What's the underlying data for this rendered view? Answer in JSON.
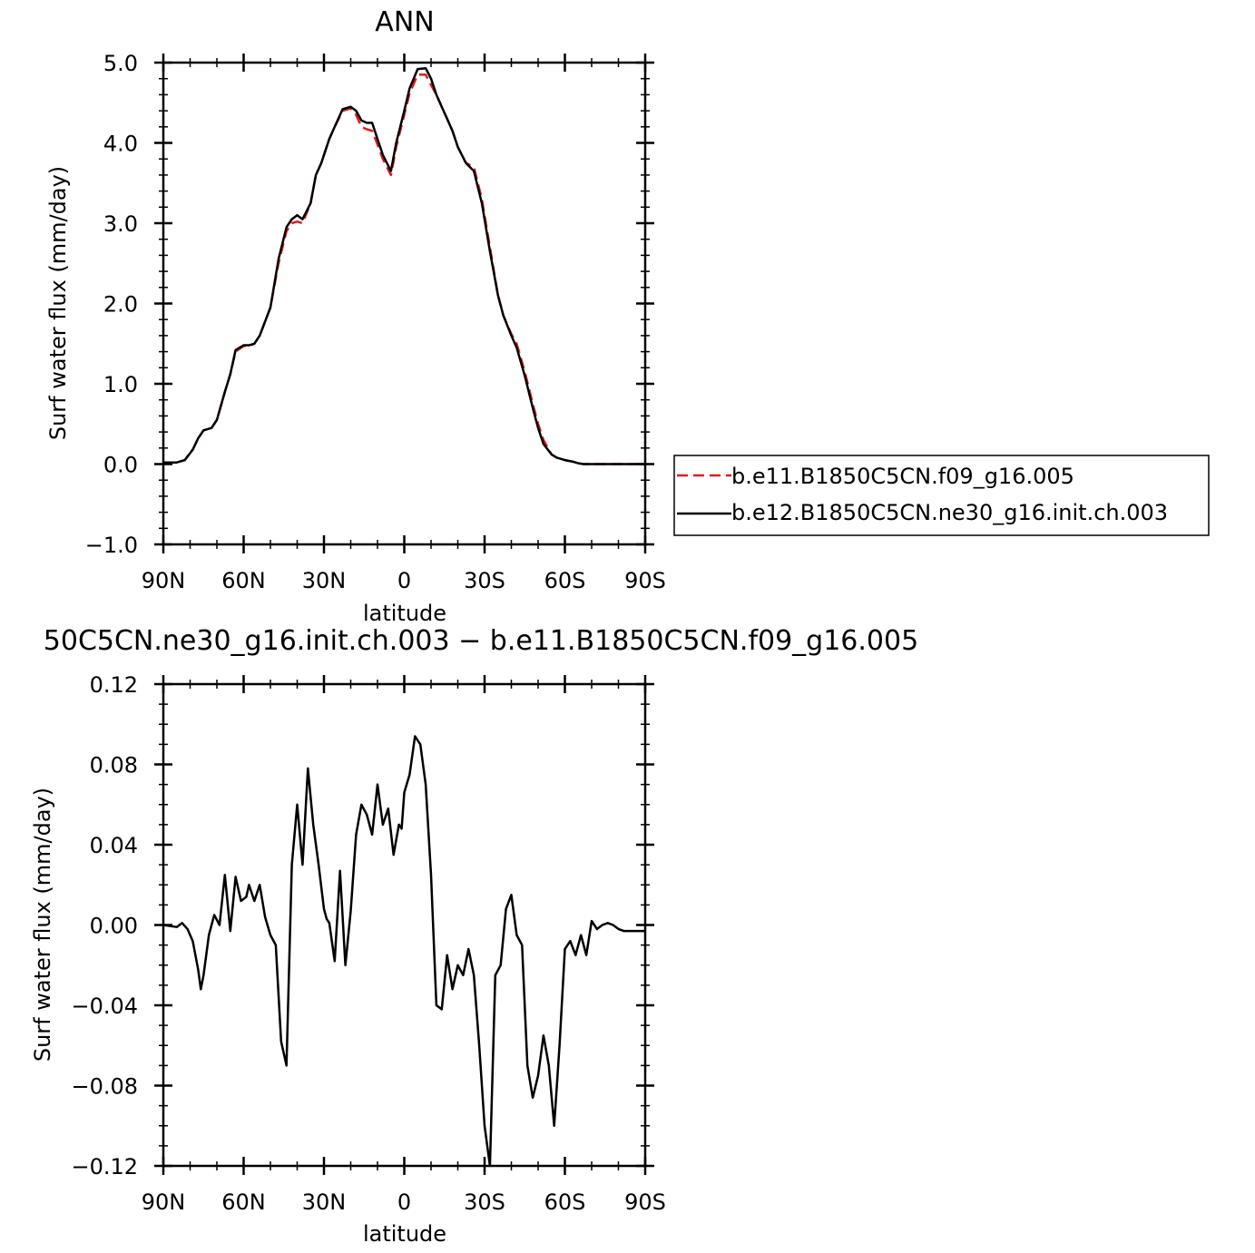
{
  "chart_data": [
    {
      "type": "line",
      "title": "ANN",
      "xlabel": "latitude",
      "ylabel": "Surf water flux (mm/day)",
      "ylim": [
        -1.0,
        5.0
      ],
      "xlim": [
        90,
        -90
      ],
      "yticks": [
        "5.0",
        "4.0",
        "3.0",
        "2.0",
        "1.0",
        "0.0",
        "−1.0"
      ],
      "ytick_values": [
        5,
        4,
        3,
        2,
        1,
        0,
        -1
      ],
      "xticks": [
        "90N",
        "60N",
        "30N",
        "0",
        "30S",
        "60S",
        "90S"
      ],
      "xtick_values": [
        90,
        60,
        30,
        0,
        -30,
        -60,
        -90
      ],
      "legend": {
        "placement": "right",
        "entries": [
          "b.e11.B1850C5CN.f09_g16.005",
          "b.e12.B1850C5CN.ne30_g16.init.ch.003"
        ]
      },
      "series": [
        {
          "name": "b.e11.B1850C5CN.f09_g16.005",
          "color": "#e31a1c",
          "dash": "dashed",
          "x": [
            90,
            85,
            82,
            79,
            77,
            75,
            72,
            70,
            67,
            65,
            63,
            60,
            58,
            56,
            54,
            50,
            47,
            44,
            42,
            40,
            38,
            35,
            33,
            31,
            30,
            28,
            26,
            23,
            20,
            18,
            16,
            14,
            12,
            10,
            8,
            5,
            3,
            0,
            -2,
            -5,
            -8,
            -10,
            -12,
            -14,
            -16,
            -18,
            -20,
            -23,
            -26,
            -29,
            -32,
            -35,
            -37,
            -40,
            -42,
            -45,
            -48,
            -50,
            -52,
            -55,
            -57,
            -60,
            -63,
            -65,
            -67,
            -70,
            -72,
            -75,
            -77,
            -79,
            -80,
            -82,
            -85,
            -88,
            -90
          ],
          "values": [
            0.02,
            0.02,
            0.05,
            0.18,
            0.32,
            0.42,
            0.45,
            0.55,
            0.9,
            1.12,
            1.4,
            1.47,
            1.47,
            1.5,
            1.6,
            1.95,
            2.5,
            2.9,
            3.0,
            3.02,
            3.0,
            3.25,
            3.6,
            3.75,
            3.85,
            4.05,
            4.2,
            4.4,
            4.43,
            4.35,
            4.2,
            4.17,
            4.15,
            3.98,
            3.8,
            3.6,
            3.95,
            4.35,
            4.62,
            4.85,
            4.85,
            4.72,
            4.6,
            4.45,
            4.3,
            4.15,
            3.95,
            3.75,
            3.7,
            3.3,
            2.7,
            2.1,
            1.85,
            1.62,
            1.5,
            1.15,
            0.75,
            0.5,
            0.3,
            0.12,
            0.08,
            0.05,
            0.03,
            0.01,
            0.0,
            0.0,
            0.0,
            0.0,
            0.0,
            0.0,
            0.0,
            0.0,
            0.0,
            0.0,
            0.0
          ]
        },
        {
          "name": "b.e12.B1850C5CN.ne30_g16.init.ch.003",
          "color": "#000000",
          "dash": "solid",
          "x": [
            90,
            85,
            82,
            79,
            77,
            75,
            72,
            70,
            67,
            65,
            63,
            60,
            58,
            56,
            54,
            50,
            47,
            44,
            42,
            40,
            38,
            35,
            33,
            31,
            30,
            28,
            26,
            23,
            20,
            18,
            16,
            14,
            12,
            10,
            8,
            5,
            3,
            0,
            -2,
            -5,
            -8,
            -10,
            -12,
            -14,
            -16,
            -18,
            -20,
            -23,
            -26,
            -29,
            -32,
            -35,
            -37,
            -40,
            -42,
            -45,
            -48,
            -50,
            -52,
            -55,
            -57,
            -60,
            -63,
            -65,
            -67,
            -70,
            -72,
            -75,
            -77,
            -79,
            -80,
            -82,
            -85,
            -88,
            -90
          ],
          "values": [
            0.02,
            0.02,
            0.05,
            0.18,
            0.32,
            0.42,
            0.45,
            0.55,
            0.9,
            1.12,
            1.42,
            1.48,
            1.48,
            1.5,
            1.6,
            1.95,
            2.55,
            2.95,
            3.05,
            3.1,
            3.05,
            3.25,
            3.6,
            3.75,
            3.85,
            4.05,
            4.2,
            4.42,
            4.45,
            4.4,
            4.28,
            4.25,
            4.25,
            4.05,
            3.85,
            3.65,
            4.0,
            4.4,
            4.68,
            4.92,
            4.93,
            4.8,
            4.6,
            4.45,
            4.3,
            4.15,
            3.95,
            3.75,
            3.65,
            3.25,
            2.65,
            2.1,
            1.85,
            1.6,
            1.45,
            1.1,
            0.7,
            0.45,
            0.25,
            0.12,
            0.08,
            0.05,
            0.03,
            0.01,
            0.0,
            0.0,
            0.0,
            0.0,
            0.0,
            0.0,
            0.0,
            0.0,
            0.0,
            0.0,
            0.0
          ]
        }
      ]
    },
    {
      "type": "line",
      "title": "50C5CN.ne30_g16.init.ch.003 − b.e11.B1850C5CN.f09_g16.005",
      "xlabel": "latitude",
      "ylabel": "Surf water flux (mm/day)",
      "ylim": [
        -0.12,
        0.12
      ],
      "xlim": [
        90,
        -90
      ],
      "yticks": [
        "0.12",
        "0.08",
        "0.04",
        "0.00",
        "−0.04",
        "−0.08",
        "−0.12"
      ],
      "ytick_values": [
        0.12,
        0.08,
        0.04,
        0.0,
        -0.04,
        -0.08,
        -0.12
      ],
      "xticks": [
        "90N",
        "60N",
        "30N",
        "0",
        "30S",
        "60S",
        "90S"
      ],
      "xtick_values": [
        90,
        60,
        30,
        0,
        -30,
        -60,
        -90
      ],
      "series": [
        {
          "color": "#000000",
          "dash": "solid",
          "x": [
            90,
            85,
            83,
            81,
            79,
            77,
            76,
            75,
            73,
            71,
            69,
            67,
            65,
            63,
            61,
            59,
            58,
            56,
            54,
            52,
            50,
            48,
            46,
            44,
            42,
            40,
            38,
            36,
            34,
            32,
            30,
            29,
            28,
            26,
            24,
            22,
            20,
            18,
            16,
            14,
            12,
            10,
            8,
            6,
            4,
            2,
            1,
            0,
            -2,
            -4,
            -6,
            -8,
            -10,
            -12,
            -14,
            -16,
            -18,
            -20,
            -22,
            -24,
            -26,
            -28,
            -30,
            -32,
            -34,
            -36,
            -38,
            -40,
            -42,
            -44,
            -46,
            -48,
            -50,
            -52,
            -54,
            -56,
            -58,
            -60,
            -62,
            -64,
            -66,
            -68,
            -70,
            -72,
            -74,
            -76,
            -78,
            -80,
            -82,
            -84,
            -86,
            -88,
            -90
          ],
          "values": [
            0.0,
            -0.001,
            0.001,
            -0.002,
            -0.008,
            -0.022,
            -0.032,
            -0.025,
            -0.005,
            0.005,
            0.0,
            0.025,
            -0.003,
            0.024,
            0.012,
            0.014,
            0.02,
            0.012,
            0.02,
            0.004,
            -0.005,
            -0.01,
            -0.058,
            -0.07,
            0.03,
            0.06,
            0.03,
            0.078,
            0.05,
            0.03,
            0.008,
            0.003,
            0.001,
            -0.018,
            0.027,
            -0.02,
            0.007,
            0.045,
            0.06,
            0.055,
            0.045,
            0.07,
            0.05,
            0.058,
            0.035,
            0.05,
            0.048,
            0.066,
            0.075,
            0.094,
            0.09,
            0.07,
            0.025,
            -0.04,
            -0.042,
            -0.015,
            -0.032,
            -0.02,
            -0.025,
            -0.012,
            -0.025,
            -0.06,
            -0.1,
            -0.12,
            -0.025,
            -0.02,
            0.008,
            0.015,
            -0.005,
            -0.01,
            -0.07,
            -0.086,
            -0.075,
            -0.055,
            -0.07,
            -0.1,
            -0.06,
            -0.012,
            -0.008,
            -0.015,
            -0.005,
            -0.015,
            0.002,
            -0.002,
            0.0,
            0.001,
            0.0,
            -0.002,
            -0.003,
            -0.003,
            -0.003,
            -0.003,
            -0.003
          ]
        }
      ]
    }
  ]
}
